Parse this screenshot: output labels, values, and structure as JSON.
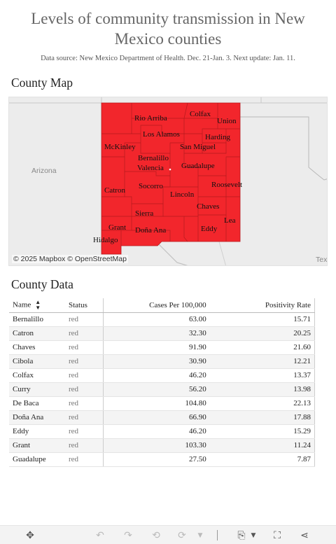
{
  "title": "Levels of community transmission in New Mexico counties",
  "subtitle": "Data source: New Mexico Department of Health. Dec. 21-Jan. 3. Next update: Jan. 11.",
  "map": {
    "section_title": "County Map",
    "attribution": "© 2025 Mapbox  © OpenStreetMap",
    "state_labels": {
      "arizona": "Arizona",
      "texas": "Tex"
    },
    "fill_color": "#f2262c",
    "counties": [
      "Rio Arriba",
      "Colfax",
      "Union",
      "Los Alamos",
      "Harding",
      "McKinley",
      "Bernalillo",
      "San Miguel",
      "Valencia",
      "Guadalupe",
      "Catron",
      "Socorro",
      "Roosevelt",
      "Lincoln",
      "Chaves",
      "Sierra",
      "Grant",
      "Lea",
      "Doña Ana",
      "Eddy",
      "Hidalgo"
    ]
  },
  "table": {
    "section_title": "County Data",
    "headers": {
      "name": "Name",
      "status": "Status",
      "cases": "Cases Per 100,000",
      "positivity": "Positivity Rate"
    },
    "rows": [
      {
        "name": "Bernalillo",
        "status": "red",
        "cases": "63.00",
        "positivity": "15.71"
      },
      {
        "name": "Catron",
        "status": "red",
        "cases": "32.30",
        "positivity": "20.25"
      },
      {
        "name": "Chaves",
        "status": "red",
        "cases": "91.90",
        "positivity": "21.60"
      },
      {
        "name": "Cibola",
        "status": "red",
        "cases": "30.90",
        "positivity": "12.21"
      },
      {
        "name": "Colfax",
        "status": "red",
        "cases": "46.20",
        "positivity": "13.37"
      },
      {
        "name": "Curry",
        "status": "red",
        "cases": "56.20",
        "positivity": "13.98"
      },
      {
        "name": "De Baca",
        "status": "red",
        "cases": "104.80",
        "positivity": "22.13"
      },
      {
        "name": "Doña Ana",
        "status": "red",
        "cases": "66.90",
        "positivity": "17.88"
      },
      {
        "name": "Eddy",
        "status": "red",
        "cases": "46.20",
        "positivity": "15.29"
      },
      {
        "name": "Grant",
        "status": "red",
        "cases": "103.30",
        "positivity": "11.24"
      },
      {
        "name": "Guadalupe",
        "status": "red",
        "cases": "27.50",
        "positivity": "7.87"
      }
    ]
  },
  "toolbar": {
    "icons": [
      "move-icon",
      "undo-icon",
      "redo-icon",
      "revert-icon",
      "replay-icon",
      "download-icon",
      "fullscreen-icon",
      "share-icon"
    ]
  }
}
